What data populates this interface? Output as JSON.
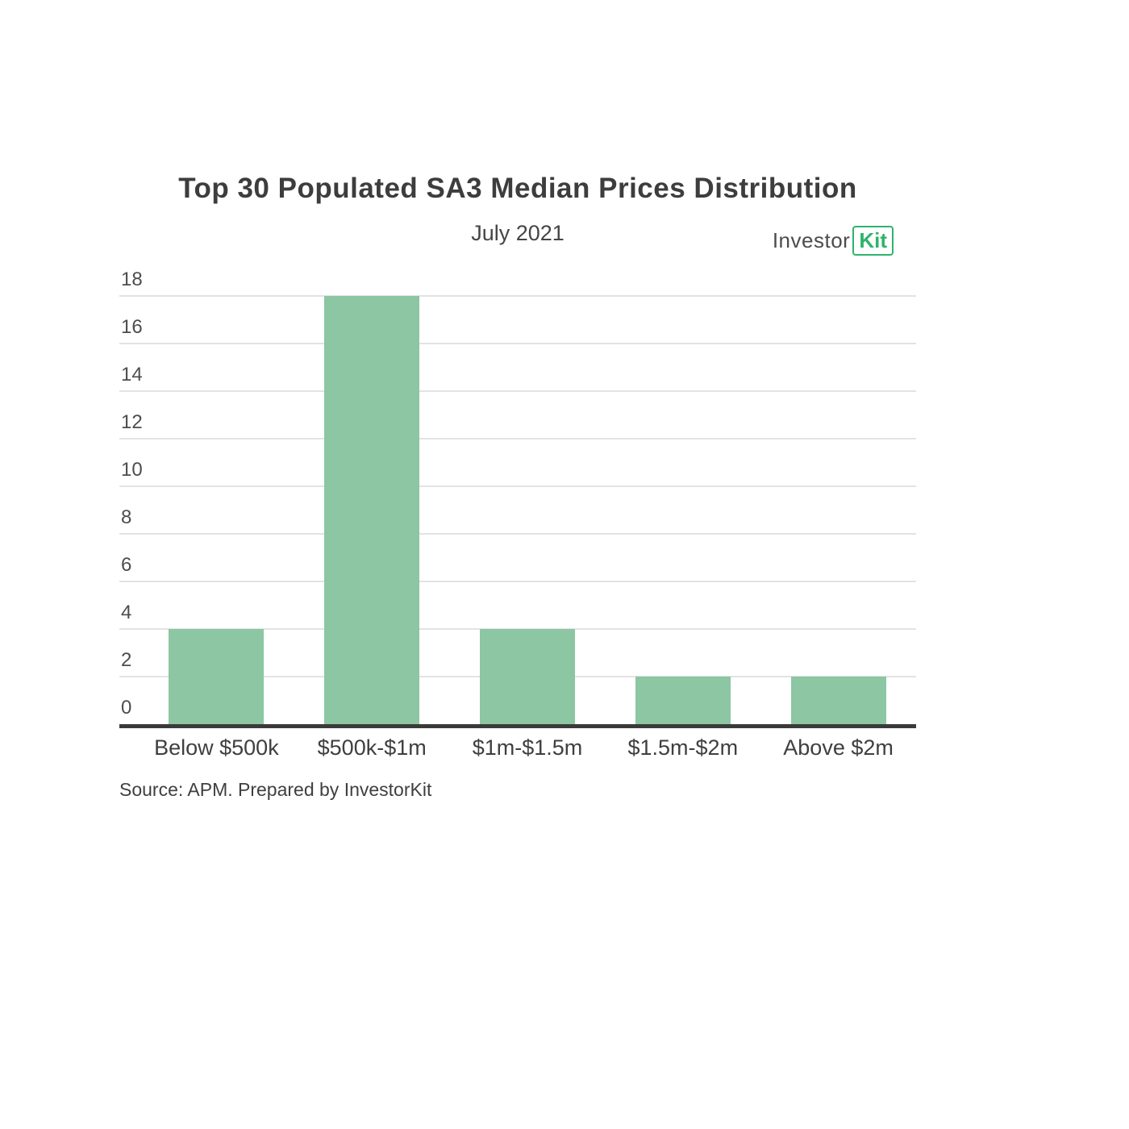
{
  "header": {
    "title": "Top 30 Populated SA3 Median Prices Distribution",
    "subtitle": "July 2021",
    "logo": {
      "part1": "Investor",
      "part2": "Kit"
    }
  },
  "source_note": "Source: APM. Prepared by InvestorKit",
  "chart_data": {
    "type": "bar",
    "title": "Top 30 Populated SA3 Median Prices Distribution",
    "subtitle": "July 2021",
    "categories": [
      "Below $500k",
      "$500k-$1m",
      "$1m-$1.5m",
      "$1.5m-$2m",
      "Above $2m"
    ],
    "values": [
      4,
      18,
      4,
      2,
      2
    ],
    "xlabel": "",
    "ylabel": "",
    "ylim": [
      0,
      18
    ],
    "yticks": [
      0,
      2,
      4,
      6,
      8,
      10,
      12,
      14,
      16,
      18
    ],
    "grid": "horizontal",
    "legend": "none",
    "bar_color": "#8cc6a2",
    "axis_color": "#3a3a3a",
    "gridline_color": "#e3e3e3",
    "logo_green": "#2fb36c"
  }
}
